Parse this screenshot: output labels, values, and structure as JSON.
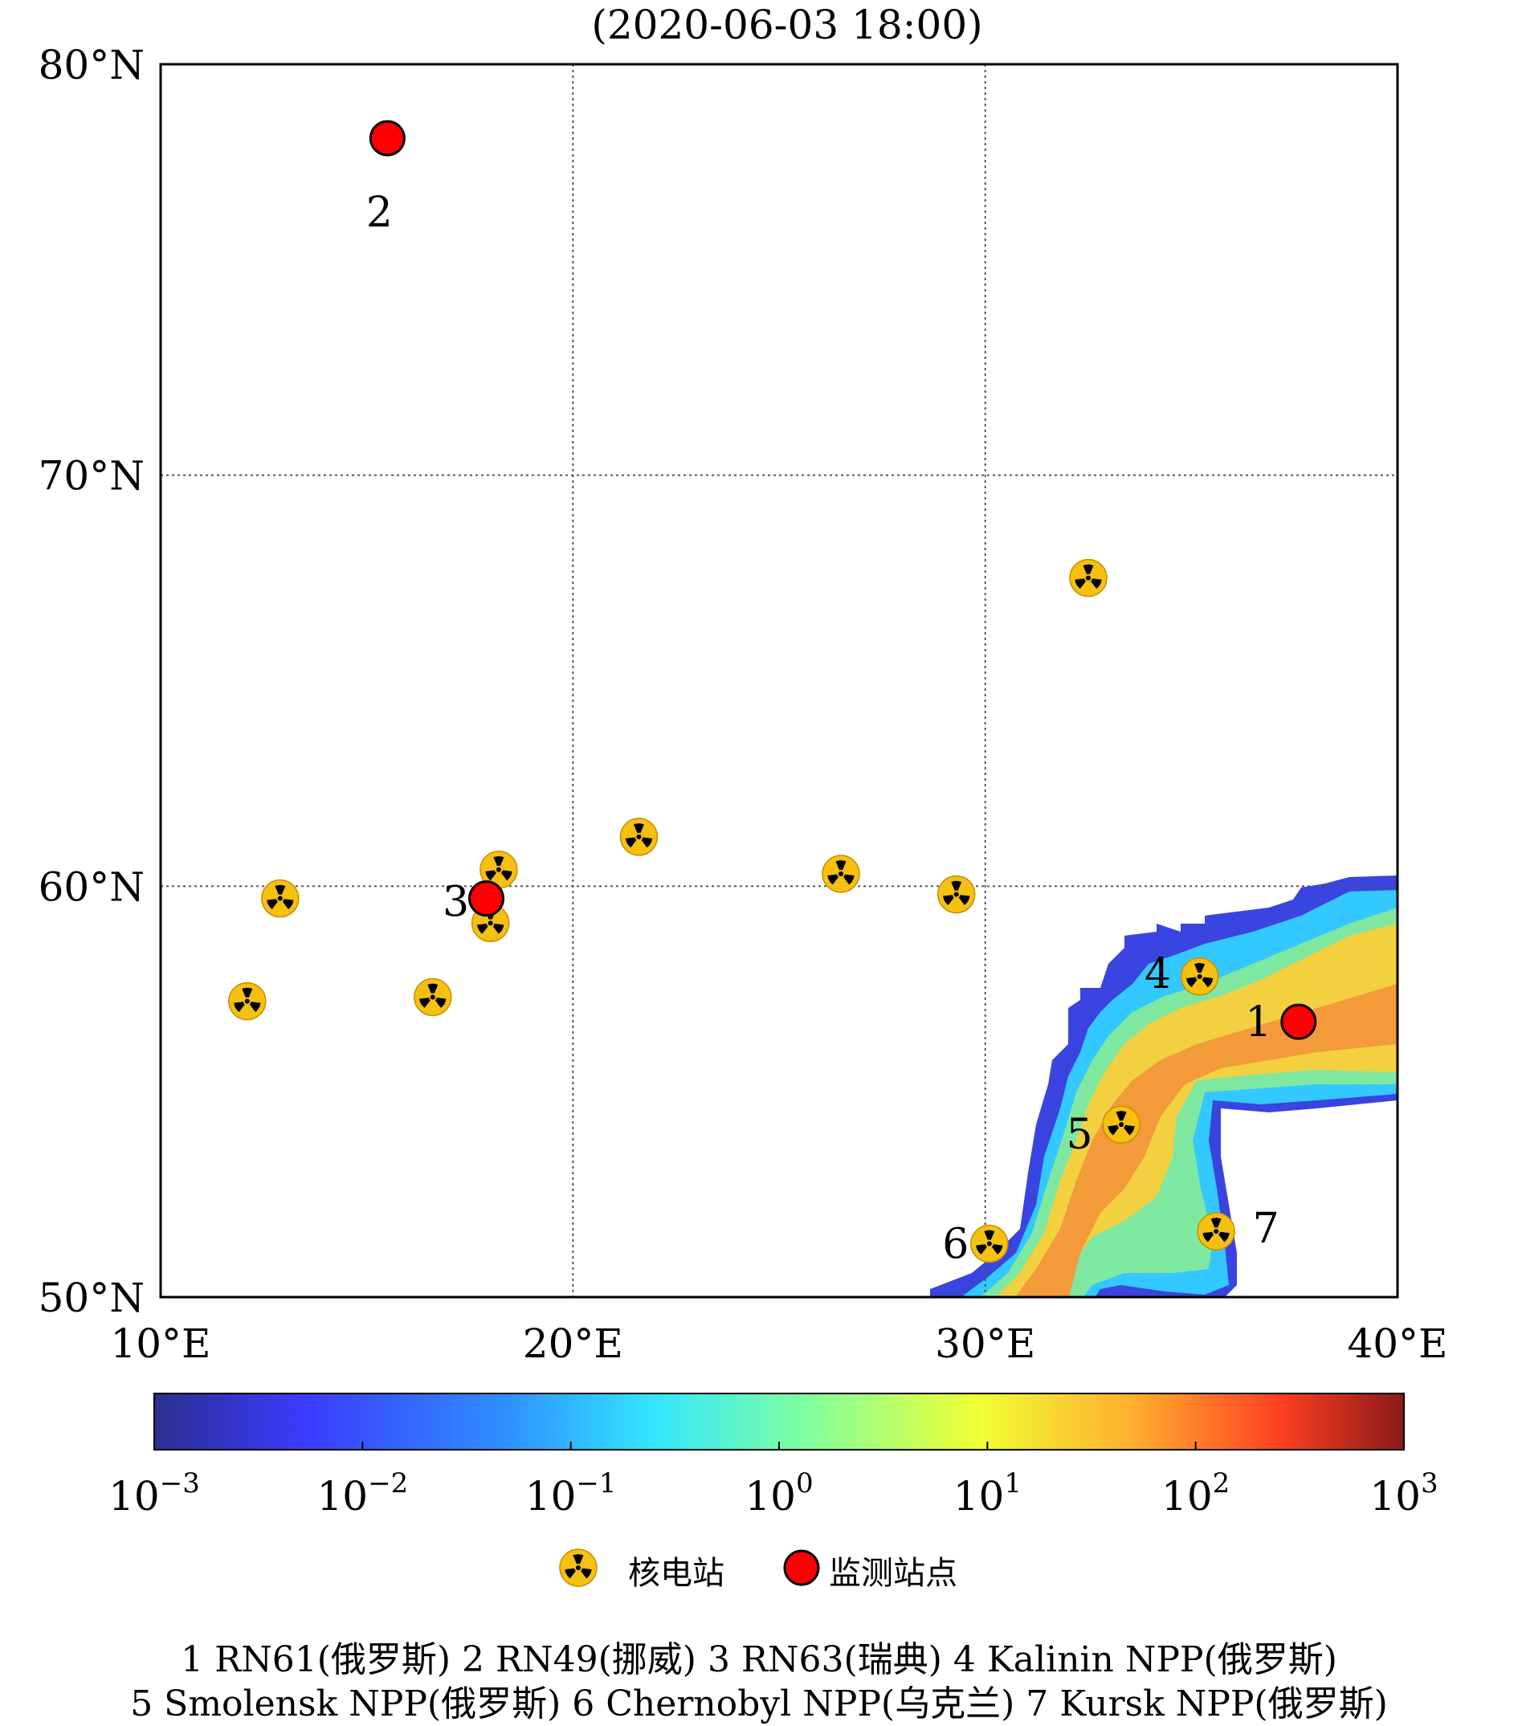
{
  "title": "(2020-06-03 18:00)",
  "map": {
    "lon_range": [
      10,
      40
    ],
    "lat_range": [
      50,
      80
    ],
    "lon_ticks": [
      {
        "value": 10,
        "label": "10°E"
      },
      {
        "value": 20,
        "label": "20°E"
      },
      {
        "value": 30,
        "label": "30°E"
      },
      {
        "value": 40,
        "label": "40°E"
      }
    ],
    "lat_ticks": [
      {
        "value": 80,
        "label": "80°N"
      },
      {
        "value": 70,
        "label": "70°N"
      },
      {
        "value": 60,
        "label": "60°N"
      },
      {
        "value": 50,
        "label": "50°N"
      }
    ],
    "grid_lon": [
      20,
      30
    ],
    "grid_lat": [
      70,
      60
    ],
    "grid_style": "dotted"
  },
  "colorbar": {
    "scale": "log",
    "range_exponent": [
      -3,
      3
    ],
    "tick_labels": [
      {
        "base": "10",
        "exp": "−3"
      },
      {
        "base": "10",
        "exp": "−2"
      },
      {
        "base": "10",
        "exp": "−1"
      },
      {
        "base": "10",
        "exp": "0"
      },
      {
        "base": "10",
        "exp": "1"
      },
      {
        "base": "10",
        "exp": "2"
      },
      {
        "base": "10",
        "exp": "3"
      }
    ],
    "colormap": [
      "#2b2f8f",
      "#3b3bff",
      "#2f8fff",
      "#33e6ff",
      "#7fffa0",
      "#f0ff33",
      "#ffb030",
      "#ff4020",
      "#8b1a1a"
    ]
  },
  "plume": {
    "colors": {
      "edge": "#3a44e0",
      "outer": "#33c8ff",
      "mid": "#7fe8a0",
      "inner": "#f2d040",
      "core": "#f39a3a"
    }
  },
  "nuclear_plants": [
    {
      "lon": 32.5,
      "lat": 67.5,
      "label": ""
    },
    {
      "lon": 21.6,
      "lat": 61.2,
      "label": ""
    },
    {
      "lon": 26.5,
      "lat": 60.3,
      "label": ""
    },
    {
      "lon": 29.3,
      "lat": 59.8,
      "label": ""
    },
    {
      "lon": 18.2,
      "lat": 60.4,
      "label": ""
    },
    {
      "lon": 18.0,
      "lat": 59.1,
      "label": ""
    },
    {
      "lon": 12.9,
      "lat": 59.7,
      "label": ""
    },
    {
      "lon": 12.1,
      "lat": 57.2,
      "label": ""
    },
    {
      "lon": 16.6,
      "lat": 57.3,
      "label": ""
    },
    {
      "lon": 35.2,
      "lat": 57.8,
      "label": "4"
    },
    {
      "lon": 33.3,
      "lat": 54.2,
      "label": "5"
    },
    {
      "lon": 30.1,
      "lat": 51.3,
      "label": "6"
    },
    {
      "lon": 35.6,
      "lat": 51.6,
      "label": "7"
    }
  ],
  "monitoring_stations": [
    {
      "lon": 37.6,
      "lat": 56.7,
      "label": "1"
    },
    {
      "lon": 15.5,
      "lat": 78.2,
      "label": "2"
    },
    {
      "lon": 17.9,
      "lat": 59.7,
      "label": "3"
    }
  ],
  "legend": {
    "plant_label": "核电站",
    "station_label": "监测站点",
    "plant_color": "#f5c010",
    "station_color": "#ff0000"
  },
  "captions": {
    "line1": "1 RN61(俄罗斯)  2 RN49(挪威) 3 RN63(瑞典) 4 Kalinin NPP(俄罗斯)",
    "line2": "5 Smolensk NPP(俄罗斯) 6 Chernobyl NPP(乌克兰) 7 Kursk NPP(俄罗斯)"
  }
}
